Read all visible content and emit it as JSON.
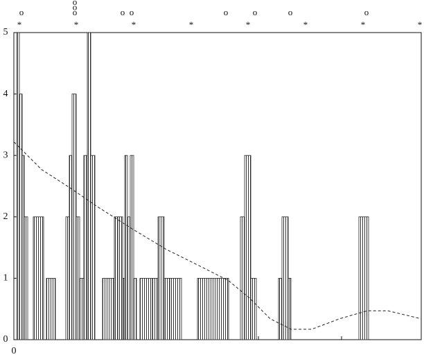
{
  "chart_data": {
    "type": "histogram",
    "bins": [
      4,
      8,
      12,
      15,
      20,
      28,
      43,
      47,
      60,
      75,
      80,
      84,
      90,
      95,
      101,
      106,
      111,
      117,
      128,
      145,
      150,
      157,
      160,
      164,
      168,
      173,
      177,
      182,
      200,
      208,
      217,
      225,
      242,
      265,
      310,
      327,
      333,
      342,
      350,
      382,
      387,
      396,
      400,
      498,
      512
    ],
    "counts": [
      5,
      4,
      3,
      2,
      0,
      2,
      0,
      1,
      0,
      2,
      3,
      4,
      2,
      1,
      3,
      5,
      3,
      0,
      1,
      2,
      2,
      1,
      3,
      2,
      3,
      1,
      0,
      1,
      1,
      2,
      1,
      1,
      0,
      1,
      0,
      2,
      3,
      1,
      0,
      1,
      2,
      1,
      0,
      2
    ],
    "color": "#222222",
    "curve": {
      "x": [
        0,
        40,
        80,
        120,
        170,
        220,
        270,
        310,
        340,
        370,
        400,
        430,
        470,
        510,
        540,
        588
      ],
      "y": [
        3.22,
        2.77,
        2.48,
        2.17,
        1.81,
        1.47,
        1.19,
        0.96,
        0.68,
        0.34,
        0.17,
        0.17,
        0.34,
        0.47,
        0.47,
        0.34
      ]
    },
    "markers": [
      {
        "symbol": "*",
        "x": [
          8,
          90,
          173,
          256,
          338,
          421,
          504,
          586
        ]
      },
      {
        "symbol": "o",
        "x": [
          11,
          88,
          88,
          88,
          157,
          170,
          306,
          348,
          399,
          509
        ]
      }
    ],
    "xlim": [
      0,
      588
    ],
    "ylim": [
      0,
      5
    ],
    "xticks": [
      0
    ],
    "minor_xticks": [
      115,
      235,
      353,
      473
    ],
    "yticks": [
      0,
      1,
      2,
      3,
      4,
      5
    ]
  }
}
